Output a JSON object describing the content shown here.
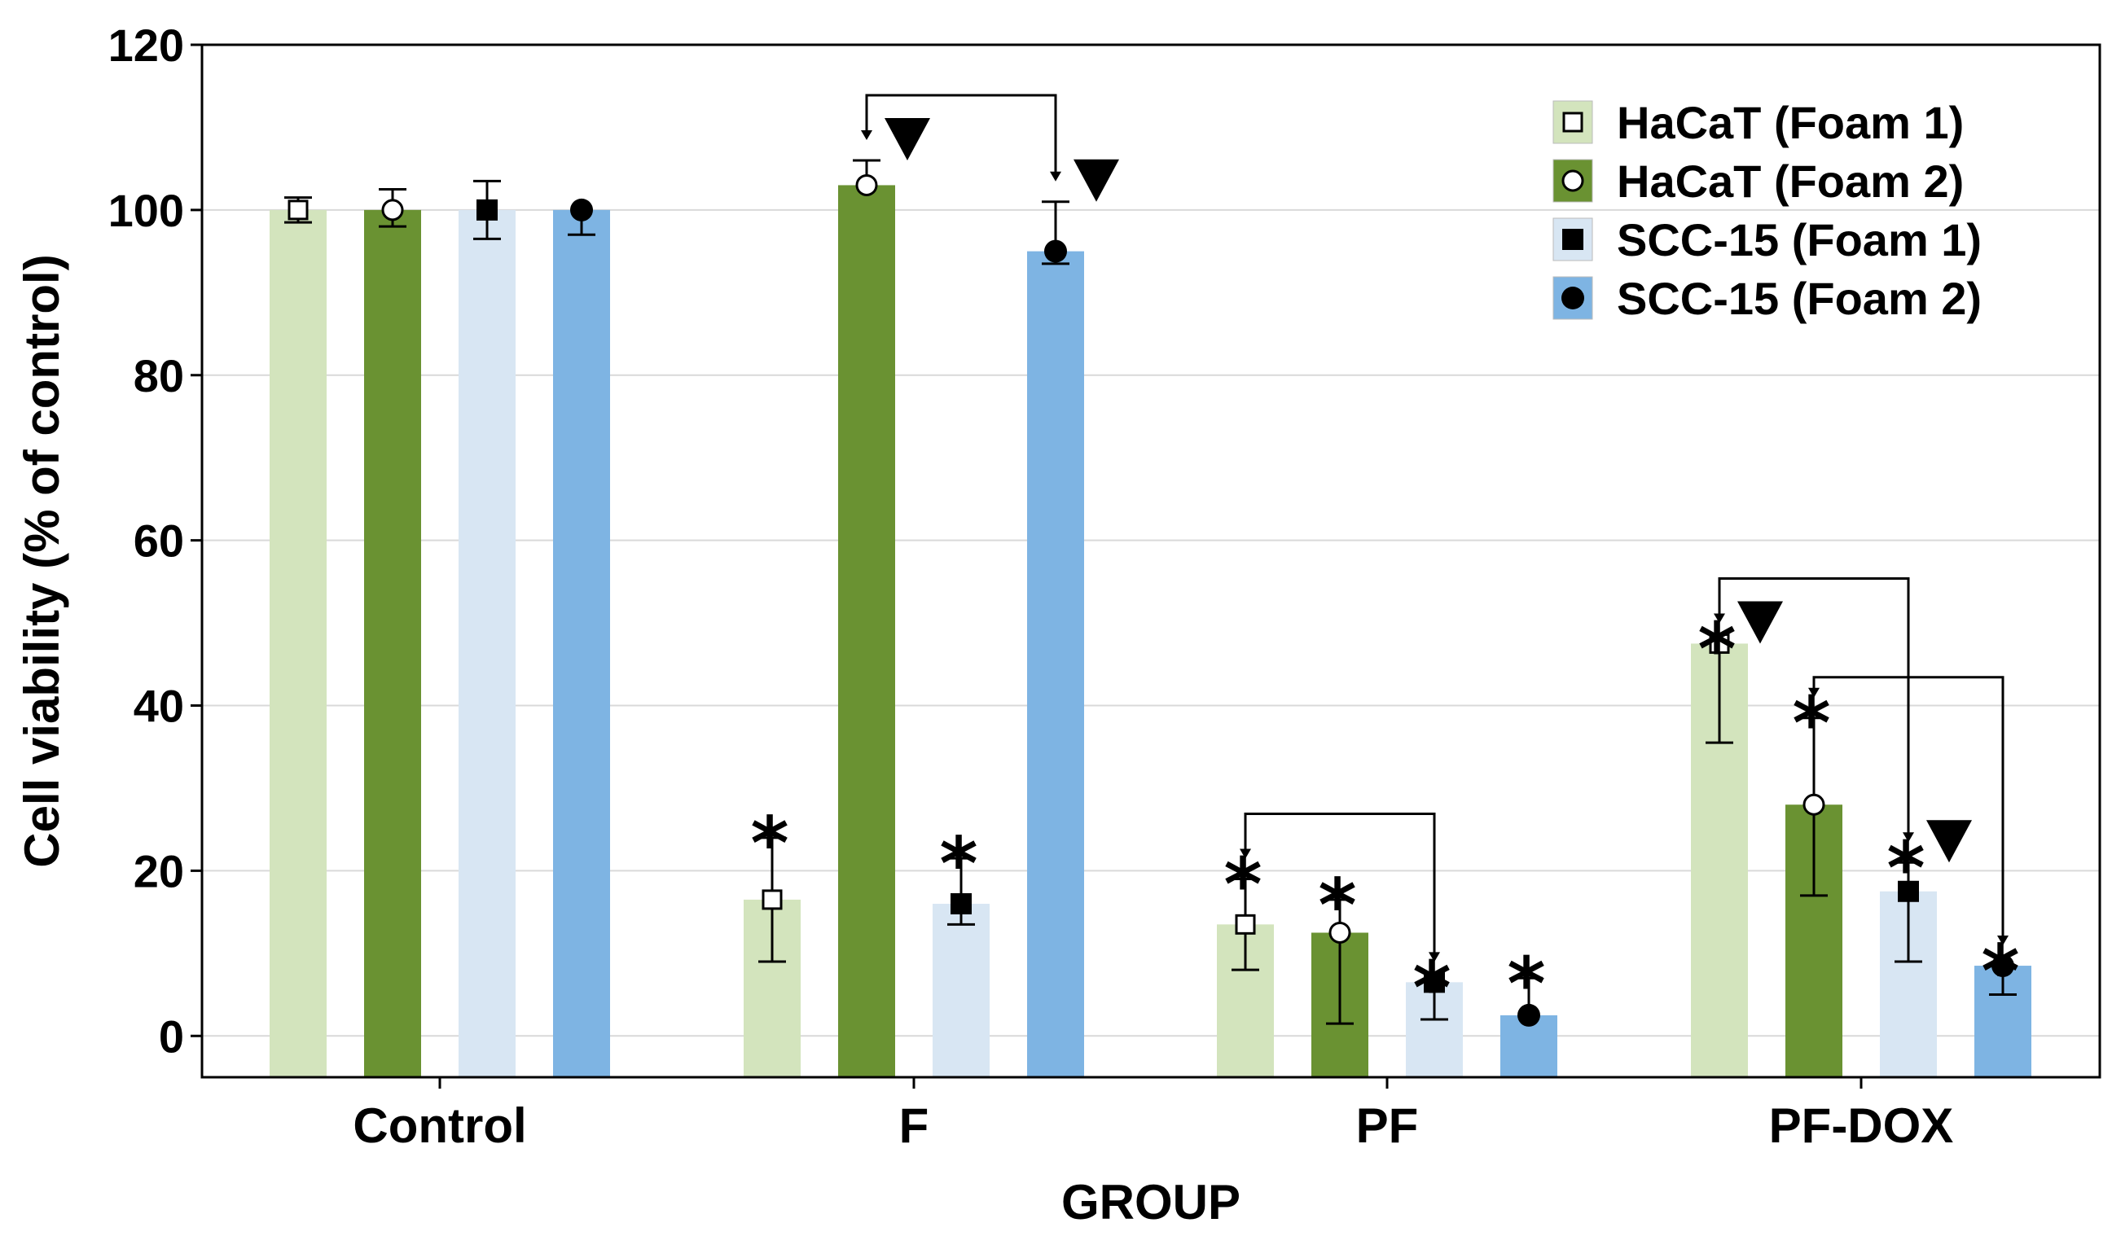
{
  "chart_data": {
    "type": "bar",
    "xlabel": "GROUP",
    "ylabel": "Cell viability (% of control)",
    "ylim": [
      -5,
      120
    ],
    "yticks": [
      0,
      20,
      40,
      60,
      80,
      100,
      120
    ],
    "grid": "horizontal",
    "legend_position": "top-right",
    "categories": [
      "Control",
      "F",
      "PF",
      "PF-DOX"
    ],
    "series": [
      {
        "name": "HaCaT (Foam 1)",
        "color": "#d3e4bd",
        "marker": "open-square",
        "values": [
          100,
          16.5,
          13.5,
          47.5
        ],
        "err_up": [
          1.5,
          7.5,
          5.5,
          0
        ],
        "err_down": [
          1.5,
          7.5,
          5.5,
          12
        ]
      },
      {
        "name": "HaCaT (Foam 2)",
        "color": "#6a9232",
        "marker": "open-circle",
        "values": [
          100,
          103,
          12.5,
          28
        ],
        "err_up": [
          2.5,
          3,
          4,
          10.5
        ],
        "err_down": [
          2,
          0,
          11,
          11
        ]
      },
      {
        "name": "SCC-15 (Foam 1)",
        "color": "#d8e6f3",
        "marker": "filled-square",
        "values": [
          100,
          16,
          6.5,
          17.5
        ],
        "err_up": [
          3.5,
          5.5,
          0,
          3.5
        ],
        "err_down": [
          3.5,
          2.5,
          4.5,
          8.5
        ]
      },
      {
        "name": "SCC-15 (Foam 2)",
        "color": "#7eb4e3",
        "marker": "filled-circle",
        "values": [
          100,
          95,
          2.5,
          8.5
        ],
        "err_up": [
          0,
          6,
          4.5,
          0
        ],
        "err_down": [
          3,
          1.5,
          0,
          3.5
        ]
      }
    ],
    "asterisks": [
      {
        "category": 1,
        "series": 0,
        "text": "*"
      },
      {
        "category": 1,
        "series": 2,
        "text": "*"
      },
      {
        "category": 2,
        "series": 0,
        "text": "*"
      },
      {
        "category": 2,
        "series": 1,
        "text": "*"
      },
      {
        "category": 2,
        "series": 2,
        "text": "*"
      },
      {
        "category": 2,
        "series": 3,
        "text": "*"
      },
      {
        "category": 3,
        "series": 0,
        "text": "*"
      },
      {
        "category": 3,
        "series": 1,
        "text": "*"
      },
      {
        "category": 3,
        "series": 2,
        "text": "*"
      },
      {
        "category": 3,
        "series": 3,
        "text": "*"
      }
    ],
    "triangles": [
      {
        "category": 1,
        "series": 1
      },
      {
        "category": 1,
        "series": 3
      },
      {
        "category": 3,
        "series": 0
      },
      {
        "category": 3,
        "series": 2
      }
    ],
    "brackets": [
      {
        "from": [
          1,
          1
        ],
        "to": [
          1,
          3
        ]
      },
      {
        "from": [
          2,
          0
        ],
        "to": [
          2,
          2
        ]
      },
      {
        "from": [
          3,
          0
        ],
        "to": [
          3,
          2
        ]
      },
      {
        "from": [
          3,
          1
        ],
        "to": [
          3,
          3
        ]
      }
    ]
  }
}
